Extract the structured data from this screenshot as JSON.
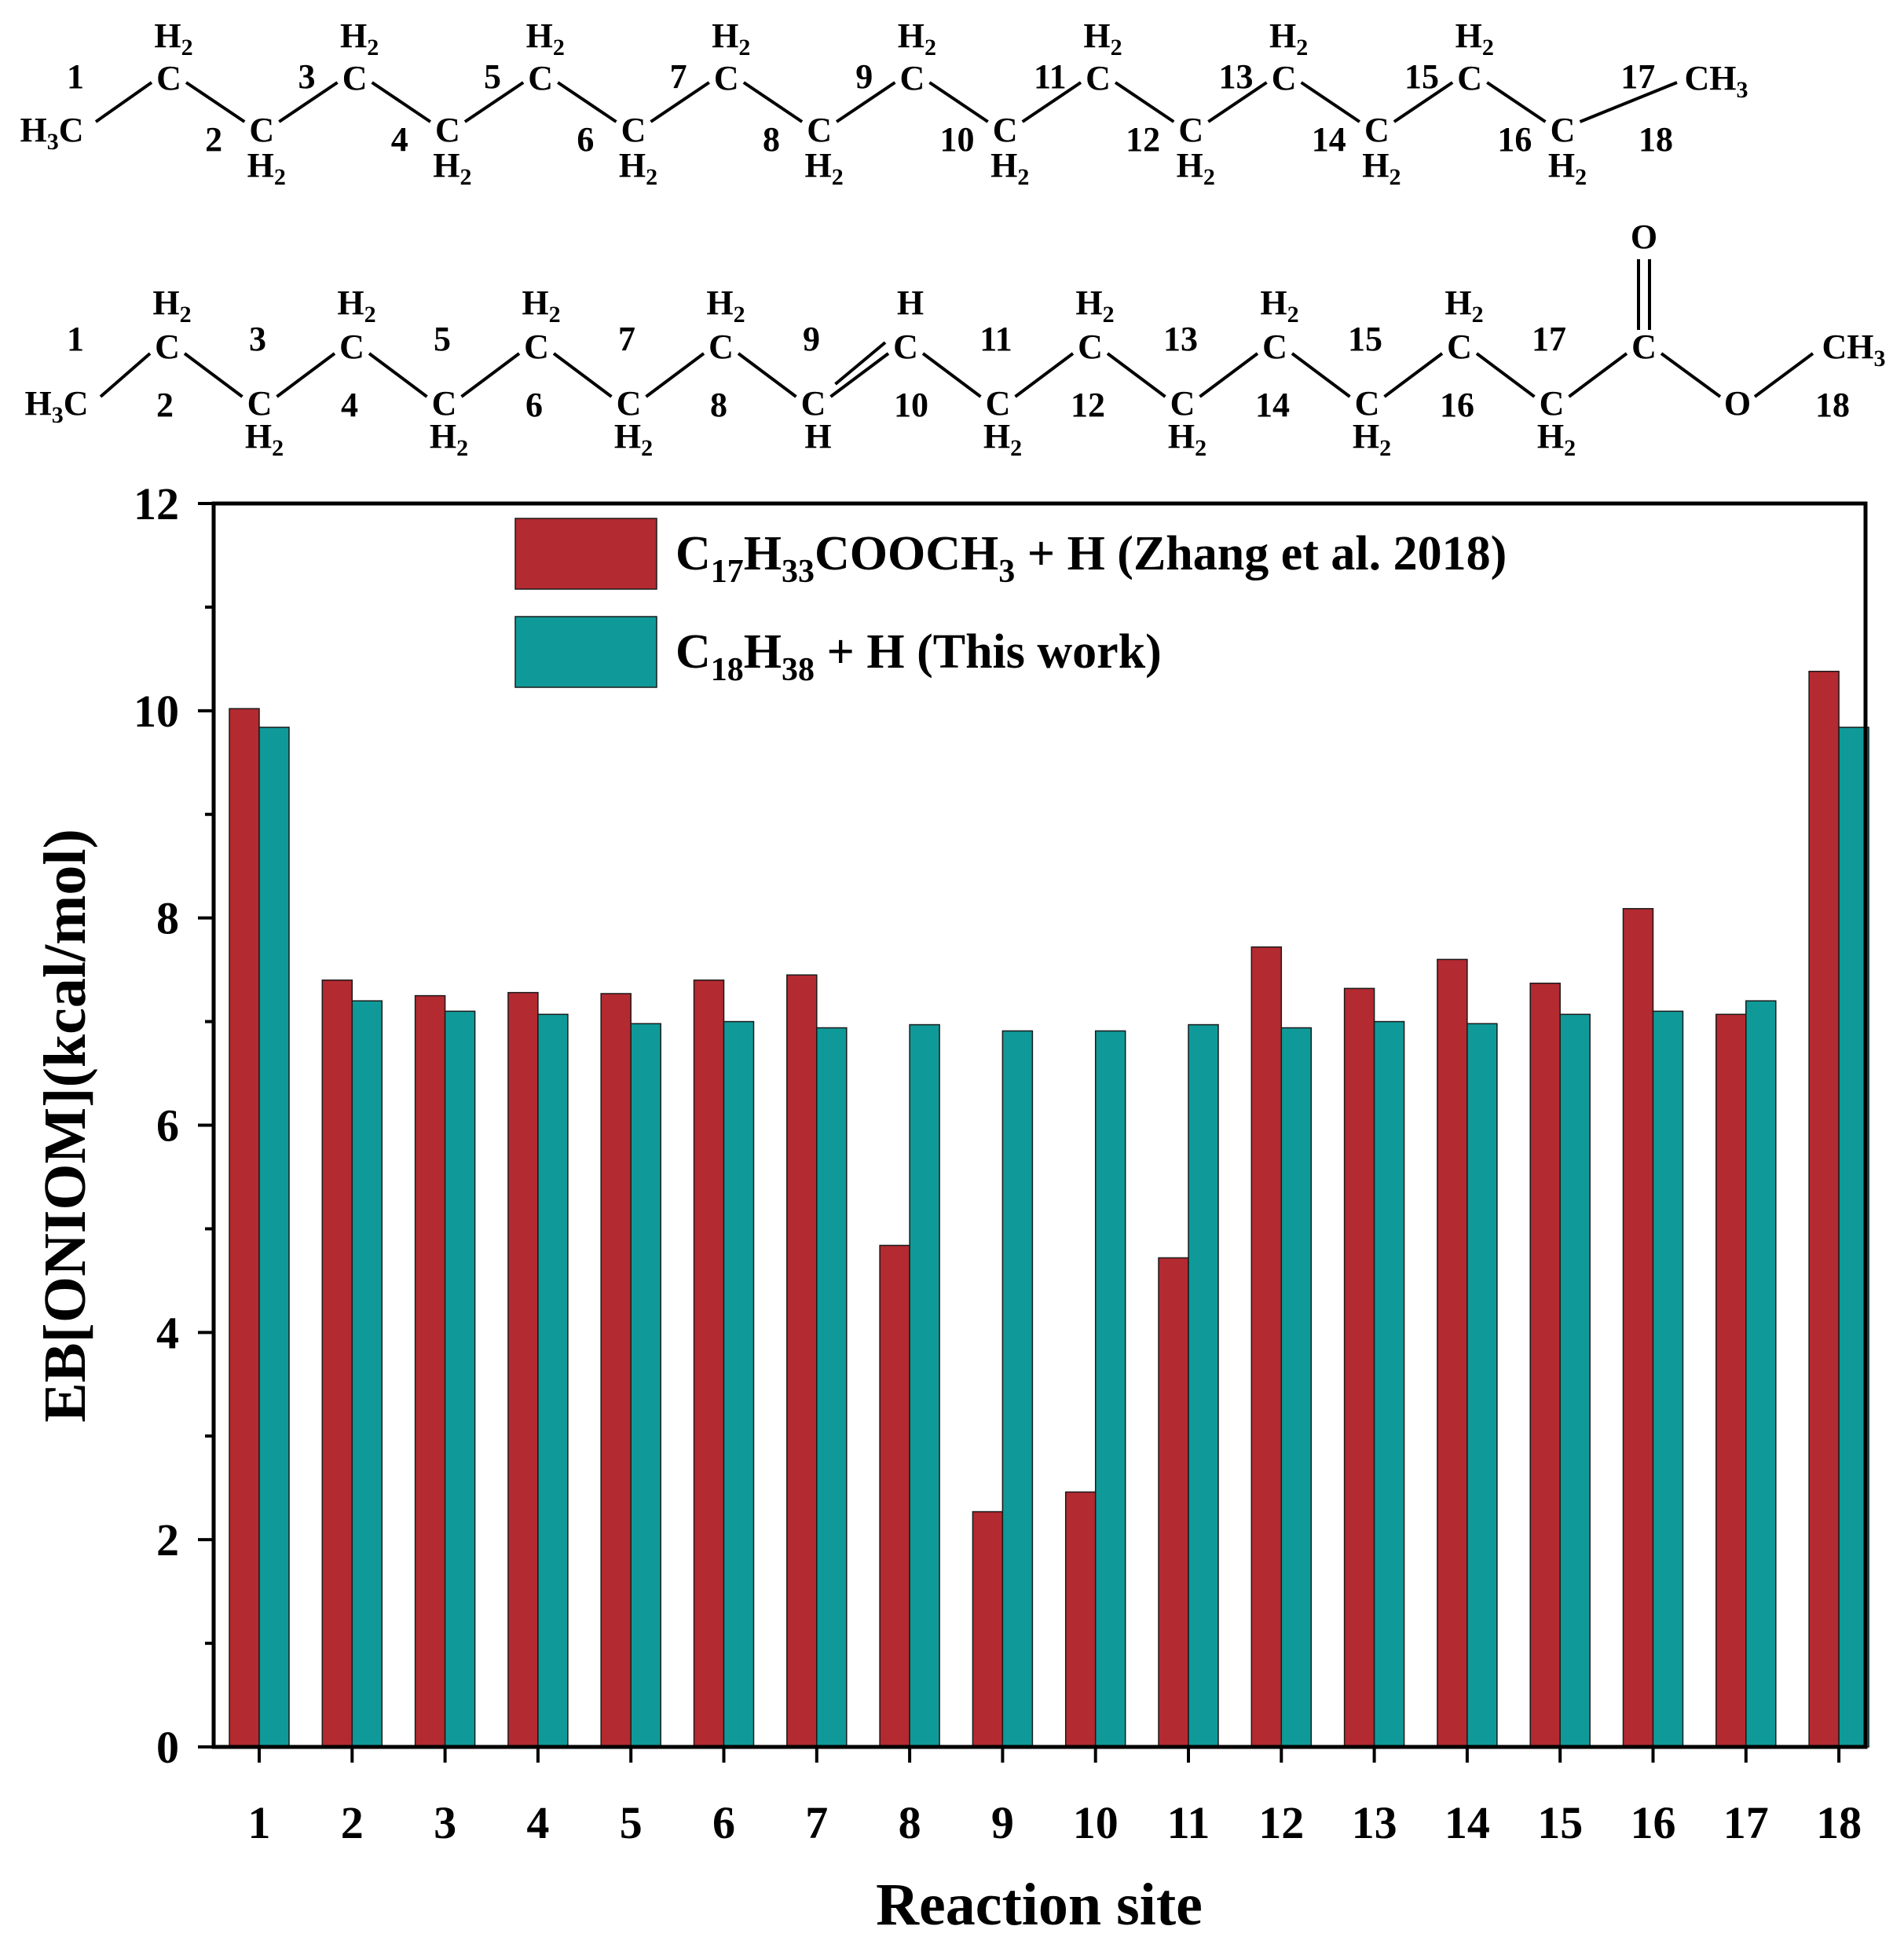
{
  "molecules": [
    {
      "name": "C18H38",
      "position_labels": [
        "1",
        "2",
        "3",
        "4",
        "5",
        "6",
        "7",
        "8",
        "9",
        "10",
        "11",
        "12",
        "13",
        "14",
        "15",
        "16",
        "17",
        "18"
      ],
      "atom_labels": [
        "H3C",
        "C",
        "C",
        "C",
        "C",
        "C",
        "C",
        "C",
        "C",
        "C",
        "C",
        "C",
        "C",
        "C",
        "C",
        "C",
        "C",
        "CH3"
      ],
      "h_labels": [
        "",
        "H2",
        "H2",
        "H2",
        "H2",
        "H2",
        "H2",
        "H2",
        "H2",
        "H2",
        "H2",
        "H2",
        "H2",
        "H2",
        "H2",
        "H2",
        "H2",
        ""
      ]
    },
    {
      "name": "C17H33COOCH3",
      "position_labels": [
        "1",
        "2",
        "3",
        "4",
        "5",
        "6",
        "7",
        "8",
        "9",
        "10",
        "11",
        "12",
        "13",
        "14",
        "15",
        "16",
        "17",
        "18"
      ],
      "atom_labels": [
        "H3C",
        "C",
        "C",
        "C",
        "C",
        "C",
        "C",
        "C",
        "C",
        "C",
        "C",
        "C",
        "C",
        "C",
        "C",
        "C",
        "C",
        "C",
        "O",
        "CH3"
      ],
      "h_labels": [
        "",
        "H2",
        "H2",
        "H2",
        "H2",
        "H2",
        "H2",
        "H2",
        "H",
        "H",
        "H2",
        "H2",
        "H2",
        "H2",
        "H2",
        "H2",
        "H2",
        "",
        "",
        ""
      ],
      "carbonyl_label": "O"
    }
  ],
  "chart_data": {
    "type": "bar",
    "title": "",
    "xlabel": "Reaction site",
    "ylabel": "EB[ONIOM](kcal/mol)",
    "ylim": [
      0,
      12
    ],
    "yticks": [
      "0",
      "2",
      "4",
      "6",
      "8",
      "10",
      "12"
    ],
    "categories": [
      "1",
      "2",
      "3",
      "4",
      "5",
      "6",
      "7",
      "8",
      "9",
      "10",
      "11",
      "12",
      "13",
      "14",
      "15",
      "16",
      "17",
      "18"
    ],
    "series": [
      {
        "name": "C17H33COOCH3 + H (Zhang et al. 2018)",
        "color": "#b32a30",
        "values": [
          10.02,
          7.4,
          7.25,
          7.28,
          7.27,
          7.4,
          7.45,
          4.84,
          2.27,
          2.46,
          4.72,
          7.72,
          7.32,
          7.6,
          7.37,
          8.09,
          7.07,
          10.38
        ]
      },
      {
        "name": "C18H38 + H (This work)",
        "color": "#0f9a99",
        "values": [
          9.84,
          7.2,
          7.1,
          7.07,
          6.98,
          7.0,
          6.94,
          6.97,
          6.91,
          6.91,
          6.97,
          6.94,
          7.0,
          6.98,
          7.07,
          7.1,
          7.2,
          9.84
        ]
      }
    ],
    "legend": {
      "placement": "top-right",
      "entries": [
        {
          "parts": [
            [
              "C",
              ""
            ],
            [
              "17",
              "sub"
            ],
            [
              "H",
              ""
            ],
            [
              "33",
              "sub"
            ],
            [
              "COOCH",
              ""
            ],
            [
              "3",
              "sub"
            ],
            [
              " + H (Zhang et al. 2018)",
              ""
            ]
          ]
        },
        {
          "parts": [
            [
              "C",
              ""
            ],
            [
              "18",
              "sub"
            ],
            [
              "H",
              ""
            ],
            [
              "38",
              "sub"
            ],
            [
              " + H (This work)",
              ""
            ]
          ]
        }
      ]
    }
  }
}
